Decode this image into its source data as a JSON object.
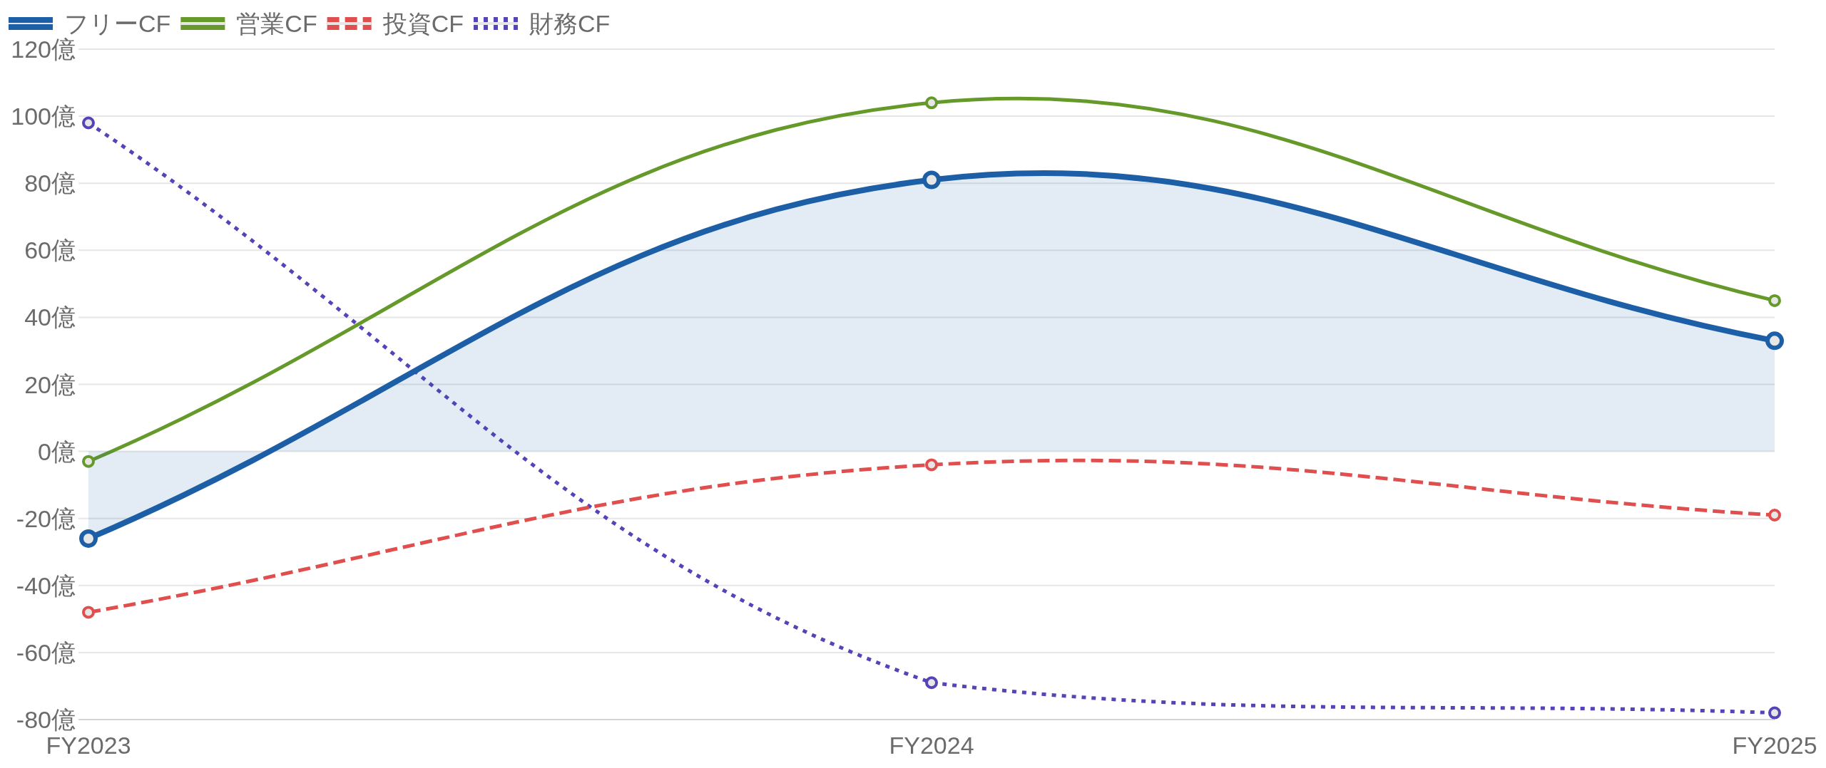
{
  "chart_data": {
    "type": "line",
    "categories": [
      "FY2023",
      "FY2024",
      "FY2025"
    ],
    "series": [
      {
        "name": "フリーCF",
        "type": "area",
        "color": "#1c5fa6",
        "line_style": "solid",
        "values": [
          -26,
          81,
          33
        ]
      },
      {
        "name": "営業CF",
        "color": "#65992a",
        "line_style": "solid",
        "values": [
          -3,
          104,
          45
        ]
      },
      {
        "name": "投資CF",
        "color": "#e04e4e",
        "line_style": "dashed",
        "values": [
          -48,
          -4,
          -19
        ]
      },
      {
        "name": "財務CF",
        "color": "#5444b8",
        "line_style": "dotted",
        "values": [
          98,
          -69,
          -78
        ]
      }
    ],
    "ylim": [
      -80,
      120
    ],
    "yticks": [
      {
        "value": -80,
        "label": "-80億"
      },
      {
        "value": -60,
        "label": "-60億"
      },
      {
        "value": -40,
        "label": "-40億"
      },
      {
        "value": -20,
        "label": "-20億"
      },
      {
        "value": 0,
        "label": "0億"
      },
      {
        "value": 20,
        "label": "20億"
      },
      {
        "value": 40,
        "label": "40億"
      },
      {
        "value": 60,
        "label": "60億"
      },
      {
        "value": 80,
        "label": "80億"
      },
      {
        "value": 100,
        "label": "100億"
      },
      {
        "value": 120,
        "label": "120億"
      }
    ],
    "grid": "y",
    "legend": "top left",
    "marker": "circle"
  }
}
